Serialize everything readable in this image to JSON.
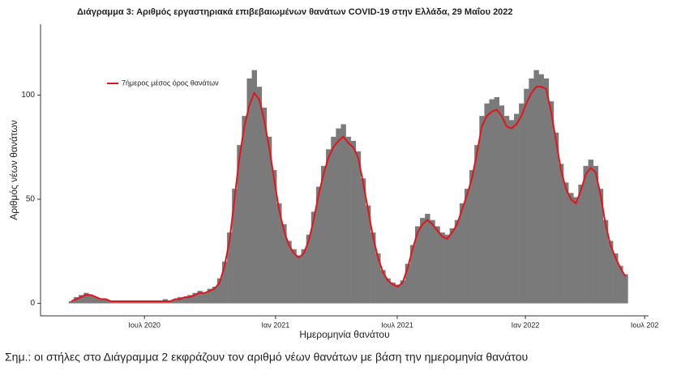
{
  "chart_data": {
    "type": "bar",
    "title": "Διάγραμμα 3: Αριθμός εργαστηριακά επιβεβαιωμένων θανάτων COVID-19 στην Ελλάδα, 29 Μαΐου 2022",
    "x_label": "Ημερομηνία θανάτου",
    "y_label": "Αριθμός νέων θανάτων",
    "note": "Σημ.: οι στήλες στο Διάγραμμα 2 εκφράζουν τον αριθμό νέων θανάτων με βάση την ημερομηνία θανάτου",
    "bars": {
      "color": "#7a7a7a",
      "values": [
        1,
        3,
        4,
        5,
        4,
        3,
        2,
        2,
        1,
        1,
        1,
        1,
        1,
        1,
        1,
        1,
        1,
        1,
        1,
        2,
        1,
        2,
        3,
        3,
        4,
        5,
        6,
        5,
        7,
        8,
        12,
        20,
        34,
        55,
        76,
        90,
        108,
        112,
        104,
        94,
        80,
        64,
        48,
        38,
        30,
        26,
        23,
        26,
        33,
        44,
        56,
        66,
        74,
        80,
        84,
        86,
        80,
        78,
        73,
        60,
        47,
        34,
        24,
        16,
        12,
        10,
        9,
        11,
        19,
        28,
        37,
        41,
        43,
        40,
        37,
        34,
        33,
        36,
        40,
        48,
        55,
        64,
        76,
        90,
        96,
        98,
        99,
        95,
        90,
        88,
        91,
        96,
        103,
        108,
        112,
        110,
        108,
        97,
        82,
        67,
        58,
        53,
        51,
        57,
        66,
        69,
        66,
        55,
        40,
        30,
        24,
        18,
        14
      ]
    },
    "series": [
      {
        "name": "7ήμερος μέσος όρος θανάτων",
        "color": "#e3141c",
        "values": [
          1,
          2,
          3,
          4,
          4,
          3,
          2,
          2,
          1,
          1,
          1,
          1,
          1,
          1,
          1,
          1,
          1,
          1,
          1,
          1,
          1,
          2,
          2,
          3,
          3,
          4,
          5,
          5,
          6,
          7,
          10,
          18,
          30,
          50,
          70,
          85,
          95,
          101,
          98,
          88,
          75,
          60,
          45,
          35,
          28,
          24,
          22,
          24,
          30,
          40,
          52,
          62,
          70,
          75,
          78,
          80,
          77,
          75,
          70,
          58,
          45,
          32,
          22,
          15,
          11,
          9,
          8,
          10,
          17,
          26,
          34,
          38,
          40,
          38,
          35,
          32,
          31,
          34,
          38,
          45,
          52,
          60,
          72,
          85,
          90,
          92,
          93,
          90,
          85,
          84,
          86,
          90,
          96,
          101,
          104,
          104,
          103,
          92,
          78,
          64,
          55,
          50,
          48,
          54,
          62,
          65,
          63,
          52,
          38,
          28,
          22,
          17,
          13
        ]
      }
    ],
    "xlim": [
      -6.2,
      116.7
    ],
    "xticks": [
      {
        "value": 14.8,
        "label": "Ιουλ 2020"
      },
      {
        "value": 41.3,
        "label": "Ιαν 2021"
      },
      {
        "value": 65.9,
        "label": "Ιουλ 2021"
      },
      {
        "value": 91.8,
        "label": "Ιαν 2022"
      },
      {
        "value": 115.9,
        "label": "Ιουλ 202"
      }
    ],
    "ylim": [
      -6,
      134
    ],
    "yticks": [
      0,
      50,
      100
    ],
    "legend": "top-left"
  }
}
